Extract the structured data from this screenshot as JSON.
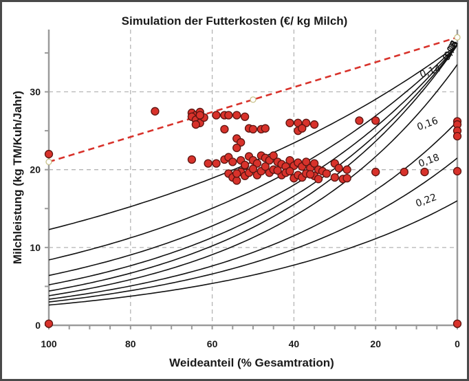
{
  "chart_data": {
    "type": "scatter",
    "title": "Simulation der Futterkosten (€/ kg Milch)",
    "xlabel": "Weideanteil (% Gesamtration)",
    "ylabel": "Milchleistung (kg TM/Kuh/Jahr)",
    "xlim": [
      100,
      0
    ],
    "ylim": [
      0,
      38
    ],
    "x_ticks": [
      "100",
      "80",
      "60",
      "40",
      "20",
      "0"
    ],
    "y_ticks": [
      "0",
      "10",
      "20",
      "30"
    ],
    "grid": true,
    "colors": {
      "points": "#d8322b",
      "trend": "#d8322b",
      "curves": "#111111",
      "grid": "#b4b4b4"
    },
    "isocost_curves": [
      {
        "label": "0,04",
        "y_at_100": 12.3,
        "y_at_0": 36.0
      },
      {
        "label": "0,06",
        "y_at_100": 8.4,
        "y_at_0": 36.0
      },
      {
        "label": "0,08",
        "y_at_100": 6.4,
        "y_at_0": 36.0
      },
      {
        "label": "0,1",
        "y_at_100": 5.2,
        "y_at_0": 36.0
      },
      {
        "label": "0,12",
        "y_at_100": 4.4,
        "y_at_0": 36.0
      },
      {
        "label": "0,14",
        "y_at_100": 3.8,
        "y_at_0": 33.5
      },
      {
        "label": "0,16",
        "y_at_100": 3.35,
        "y_at_0": 26.2
      },
      {
        "label": "0,18",
        "y_at_100": 3.0,
        "y_at_0": 21.5
      },
      {
        "label": "0,22",
        "y_at_100": 2.6,
        "y_at_0": 16.0
      }
    ],
    "trend": {
      "x": [
        100,
        0
      ],
      "y": [
        21.0,
        37.0
      ]
    },
    "reference_points": [
      {
        "x": 100,
        "y": 21.0
      },
      {
        "x": 50,
        "y": 29.0
      },
      {
        "x": 0,
        "y": 37.0
      }
    ],
    "points": [
      [
        100,
        22.0
      ],
      [
        100,
        0.2
      ],
      [
        0,
        0.2
      ],
      [
        0,
        26.2
      ],
      [
        0,
        25.8
      ],
      [
        0,
        25.0
      ],
      [
        0,
        24.3
      ],
      [
        0,
        19.8
      ],
      [
        74,
        27.5
      ],
      [
        65,
        27.3
      ],
      [
        64,
        27.0
      ],
      [
        63,
        27.4
      ],
      [
        65,
        26.8
      ],
      [
        64,
        26.4
      ],
      [
        63,
        26.0
      ],
      [
        62,
        26.7
      ],
      [
        64,
        25.8
      ],
      [
        63,
        27.0
      ],
      [
        59,
        27.0
      ],
      [
        57,
        27.0
      ],
      [
        56,
        27.0
      ],
      [
        54,
        27.0
      ],
      [
        52,
        26.8
      ],
      [
        57,
        25.2
      ],
      [
        54,
        24.0
      ],
      [
        53,
        23.5
      ],
      [
        51,
        25.3
      ],
      [
        50,
        25.2
      ],
      [
        48,
        25.2
      ],
      [
        47,
        25.3
      ],
      [
        41,
        26.0
      ],
      [
        39,
        26.0
      ],
      [
        37,
        26.0
      ],
      [
        35,
        25.8
      ],
      [
        39,
        25.0
      ],
      [
        38,
        25.3
      ],
      [
        24,
        26.3
      ],
      [
        20,
        26.3
      ],
      [
        65,
        21.3
      ],
      [
        61,
        20.8
      ],
      [
        59,
        20.8
      ],
      [
        57,
        21.3
      ],
      [
        56,
        21.6
      ],
      [
        55,
        21.0
      ],
      [
        54,
        22.8
      ],
      [
        53,
        21.2
      ],
      [
        52,
        20.5
      ],
      [
        51,
        21.7
      ],
      [
        50,
        21.2
      ],
      [
        49,
        20.8
      ],
      [
        48,
        21.8
      ],
      [
        47,
        21.5
      ],
      [
        46,
        21.2
      ],
      [
        45,
        21.8
      ],
      [
        44,
        21.0
      ],
      [
        43,
        20.7
      ],
      [
        42,
        20.4
      ],
      [
        41,
        21.2
      ],
      [
        40,
        20.5
      ],
      [
        39,
        20.9
      ],
      [
        38,
        20.4
      ],
      [
        37,
        21.0
      ],
      [
        36,
        20.2
      ],
      [
        35,
        20.8
      ],
      [
        34,
        20.0
      ],
      [
        33,
        19.8
      ],
      [
        30,
        20.8
      ],
      [
        29,
        20.2
      ],
      [
        27,
        20.0
      ],
      [
        56,
        19.5
      ],
      [
        55,
        19.0
      ],
      [
        54,
        18.6
      ],
      [
        53,
        19.7
      ],
      [
        52,
        19.2
      ],
      [
        51,
        19.6
      ],
      [
        50,
        20.1
      ],
      [
        49,
        19.3
      ],
      [
        48,
        19.8
      ],
      [
        46,
        19.6
      ],
      [
        45,
        20.0
      ],
      [
        43,
        19.3
      ],
      [
        42,
        19.6
      ],
      [
        40,
        18.9
      ],
      [
        39,
        19.3
      ],
      [
        38,
        19.0
      ],
      [
        37,
        19.5
      ],
      [
        35,
        19.2
      ],
      [
        34,
        18.8
      ],
      [
        32,
        19.5
      ],
      [
        30,
        19.0
      ],
      [
        28,
        18.8
      ],
      [
        27,
        18.9
      ],
      [
        54,
        19.5
      ],
      [
        52,
        20.6
      ],
      [
        47,
        20.4
      ],
      [
        44,
        19.9
      ],
      [
        41,
        19.8
      ],
      [
        36,
        19.4
      ],
      [
        20,
        19.7
      ],
      [
        13,
        19.7
      ],
      [
        8,
        19.7
      ]
    ]
  }
}
